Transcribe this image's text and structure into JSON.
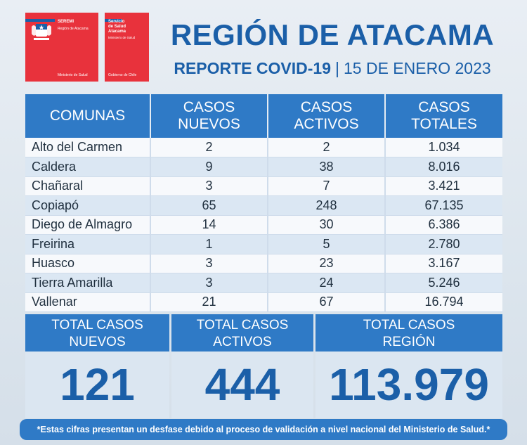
{
  "logos": {
    "seremi": {
      "name": "SEREMI",
      "region": "Región de Atacama",
      "ministry": "Ministerio de Salud"
    },
    "servicio": {
      "name_line1": "Servicio",
      "name_line2": "de Salud",
      "name_line3": "Atacama",
      "ministry": "Ministerio de Salud",
      "gov": "Gobierno de Chile"
    },
    "colors": {
      "red": "#e8323c",
      "blue": "#1b5fa8"
    }
  },
  "header": {
    "title": "REGIÓN DE ATACAMA",
    "report": "REPORTE COVID-19",
    "separator": "|",
    "date": "15 DE ENERO 2023"
  },
  "table": {
    "columns": [
      {
        "line1": "COMUNAS",
        "line2": ""
      },
      {
        "line1": "CASOS",
        "line2": "NUEVOS"
      },
      {
        "line1": "CASOS",
        "line2": "ACTIVOS"
      },
      {
        "line1": "CASOS",
        "line2": "TOTALES"
      }
    ],
    "rows": [
      {
        "comuna": "Alto del Carmen",
        "nuevos": "2",
        "activos": "2",
        "totales": "1.034"
      },
      {
        "comuna": "Caldera",
        "nuevos": "9",
        "activos": "38",
        "totales": "8.016"
      },
      {
        "comuna": "Chañaral",
        "nuevos": "3",
        "activos": "7",
        "totales": "3.421"
      },
      {
        "comuna": "Copiapó",
        "nuevos": "65",
        "activos": "248",
        "totales": "67.135"
      },
      {
        "comuna": "Diego de Almagro",
        "nuevos": "14",
        "activos": "30",
        "totales": "6.386"
      },
      {
        "comuna": "Freirina",
        "nuevos": "1",
        "activos": "5",
        "totales": "2.780"
      },
      {
        "comuna": "Huasco",
        "nuevos": "3",
        "activos": "23",
        "totales": "3.167"
      },
      {
        "comuna": "Tierra Amarilla",
        "nuevos": "3",
        "activos": "24",
        "totales": "5.246"
      },
      {
        "comuna": "Vallenar",
        "nuevos": "21",
        "activos": "67",
        "totales": "16.794"
      }
    ]
  },
  "totals": [
    {
      "line1": "TOTAL CASOS",
      "line2": "NUEVOS",
      "value": "121"
    },
    {
      "line1": "TOTAL CASOS",
      "line2": "ACTIVOS",
      "value": "444"
    },
    {
      "line1": "TOTAL CASOS",
      "line2": "REGIÓN",
      "value": "113.979"
    }
  ],
  "footer": "*Estas cifras presentan un desfase debido al proceso de validación a nivel nacional del Ministerio de Salud.*"
}
